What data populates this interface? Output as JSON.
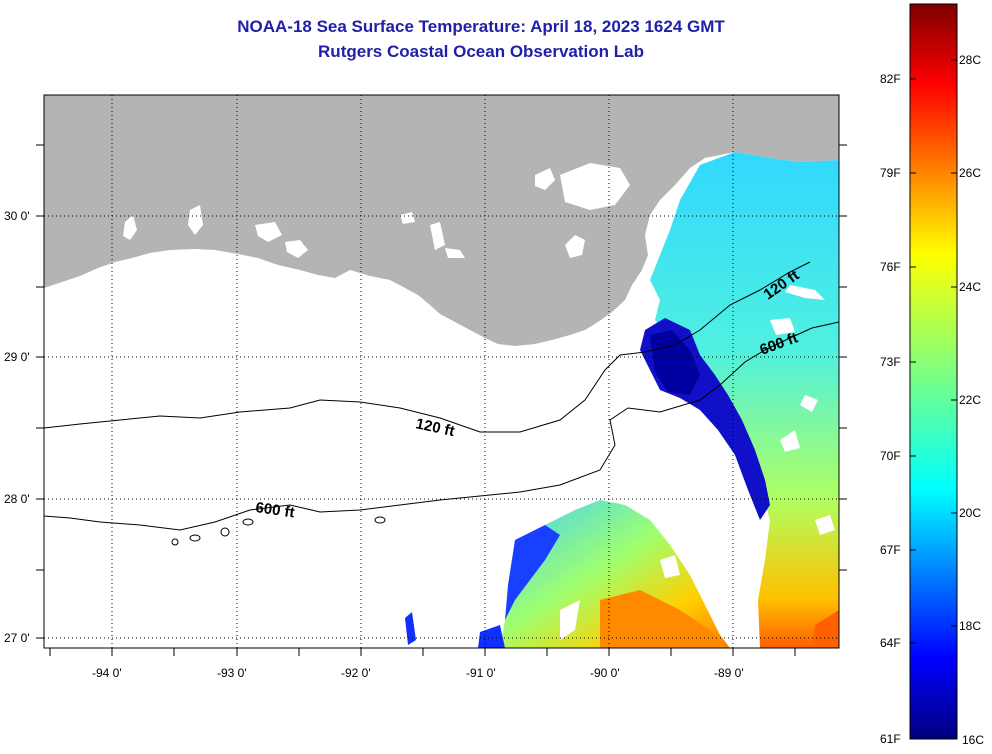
{
  "title": {
    "line1": "NOAA-18 Sea Surface Temperature:  April 18, 2023 1624 GMT",
    "line2": "Rutgers Coastal Ocean Observation Lab"
  },
  "axes": {
    "x_ticks": [
      "-94 0'",
      "-93 0'",
      "-92 0'",
      "-91 0'",
      "-90 0'",
      "-89 0'"
    ],
    "y_ticks": [
      "30 0'",
      "29 0'",
      "28 0'",
      "27 0'"
    ]
  },
  "contours": {
    "label_120_left": "120 ft",
    "label_600_left": "600 ft",
    "label_120_right": "120 ft",
    "label_600_right": "600 ft"
  },
  "colorbar": {
    "fahrenheit": [
      "82F",
      "79F",
      "76F",
      "73F",
      "70F",
      "67F",
      "64F",
      "61F"
    ],
    "celsius": [
      "28C",
      "26C",
      "24C",
      "22C",
      "20C",
      "18C",
      "16C"
    ]
  },
  "colors": {
    "land": "#b4b4b4",
    "title": "#1f1fa8",
    "frame": "#000000"
  }
}
